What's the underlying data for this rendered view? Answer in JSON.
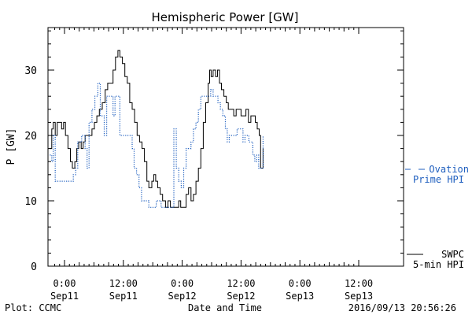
{
  "chart_data": {
    "type": "line",
    "title": "Hemispheric Power [GW]",
    "ylabel": "P [GW]",
    "xlabel": "Date and Time",
    "ylim": [
      0,
      36
    ],
    "xlim": [
      -2.5,
      60.5
    ],
    "yticks": [
      0,
      10,
      20,
      30
    ],
    "xticks": [
      {
        "x": 0,
        "time": "0:00",
        "date": "Sep11"
      },
      {
        "x": 12,
        "time": "12:00",
        "date": "Sep11"
      },
      {
        "x": 24,
        "time": "0:00",
        "date": "Sep12"
      },
      {
        "x": 36,
        "time": "12:00",
        "date": "Sep12"
      },
      {
        "x": 48,
        "time": "0:00",
        "date": "Sep13"
      },
      {
        "x": 60,
        "time": "12:00",
        "date": "Sep13"
      }
    ],
    "grid": false,
    "legend_position": "right",
    "series": [
      {
        "name": "SWPC 5-min HPI",
        "name_lines": [
          "SWPC",
          "5-min HPI"
        ],
        "color": "#000000",
        "style": "solid",
        "points": [
          [
            -3.0,
            18
          ],
          [
            -2.6,
            21
          ],
          [
            -2.3,
            22
          ],
          [
            -1.9,
            20
          ],
          [
            -1.5,
            22
          ],
          [
            -1.0,
            22
          ],
          [
            -0.6,
            21
          ],
          [
            -0.2,
            22
          ],
          [
            0.2,
            20
          ],
          [
            0.7,
            18
          ],
          [
            1.2,
            16
          ],
          [
            1.6,
            15
          ],
          [
            2.1,
            16
          ],
          [
            2.5,
            18
          ],
          [
            2.9,
            19
          ],
          [
            3.4,
            18
          ],
          [
            3.8,
            19
          ],
          [
            4.2,
            20
          ],
          [
            4.7,
            20
          ],
          [
            5.1,
            20
          ],
          [
            5.6,
            21
          ],
          [
            6.1,
            22
          ],
          [
            6.6,
            23
          ],
          [
            7.1,
            24
          ],
          [
            7.7,
            25
          ],
          [
            8.3,
            27
          ],
          [
            8.8,
            28
          ],
          [
            9.3,
            28
          ],
          [
            9.9,
            30
          ],
          [
            10.4,
            32
          ],
          [
            10.9,
            33
          ],
          [
            11.3,
            32
          ],
          [
            11.8,
            31
          ],
          [
            12.3,
            29
          ],
          [
            12.8,
            28
          ],
          [
            13.3,
            25
          ],
          [
            13.8,
            24
          ],
          [
            14.3,
            22
          ],
          [
            14.8,
            20
          ],
          [
            15.3,
            19
          ],
          [
            15.8,
            18
          ],
          [
            16.3,
            16
          ],
          [
            16.8,
            13
          ],
          [
            17.2,
            12
          ],
          [
            17.8,
            13
          ],
          [
            18.2,
            14
          ],
          [
            18.6,
            13
          ],
          [
            19.0,
            12
          ],
          [
            19.5,
            11
          ],
          [
            20.0,
            10
          ],
          [
            20.6,
            9
          ],
          [
            21.1,
            10
          ],
          [
            21.6,
            9
          ],
          [
            22.2,
            9
          ],
          [
            22.8,
            9
          ],
          [
            23.3,
            10
          ],
          [
            23.7,
            9
          ],
          [
            24.3,
            9
          ],
          [
            24.8,
            11
          ],
          [
            25.3,
            12
          ],
          [
            25.8,
            10
          ],
          [
            26.3,
            11
          ],
          [
            26.8,
            13
          ],
          [
            27.3,
            15
          ],
          [
            27.8,
            18
          ],
          [
            28.3,
            22
          ],
          [
            28.8,
            25
          ],
          [
            29.3,
            28
          ],
          [
            29.6,
            30
          ],
          [
            29.9,
            29
          ],
          [
            30.3,
            30
          ],
          [
            30.8,
            29
          ],
          [
            31.2,
            30
          ],
          [
            31.6,
            28
          ],
          [
            32.0,
            27
          ],
          [
            32.5,
            26
          ],
          [
            33.0,
            25
          ],
          [
            33.4,
            24
          ],
          [
            34.0,
            24
          ],
          [
            34.5,
            23
          ],
          [
            35.0,
            24
          ],
          [
            35.5,
            24
          ],
          [
            36.0,
            23
          ],
          [
            36.5,
            23
          ],
          [
            37.0,
            24
          ],
          [
            37.5,
            22
          ],
          [
            38.0,
            23
          ],
          [
            38.5,
            23
          ],
          [
            38.9,
            22
          ],
          [
            39.3,
            21
          ],
          [
            39.7,
            20
          ],
          [
            40.0,
            15
          ],
          [
            40.5,
            18
          ]
        ]
      },
      {
        "name": "Ovation Prime HPI",
        "name_lines": [
          "Ovation",
          "Prime HPI"
        ],
        "color": "#1f5fbf",
        "style": "dotted",
        "points": [
          [
            -3.0,
            17
          ],
          [
            -2.6,
            16
          ],
          [
            -2.3,
            20
          ],
          [
            -1.9,
            13
          ],
          [
            -1.4,
            13
          ],
          [
            -0.8,
            13
          ],
          [
            -0.2,
            13
          ],
          [
            0.5,
            13
          ],
          [
            1.2,
            13
          ],
          [
            1.8,
            14
          ],
          [
            2.3,
            15
          ],
          [
            2.7,
            19
          ],
          [
            3.1,
            19
          ],
          [
            3.5,
            20
          ],
          [
            3.9,
            20
          ],
          [
            4.2,
            18
          ],
          [
            4.6,
            15
          ],
          [
            5.0,
            22
          ],
          [
            5.6,
            24
          ],
          [
            6.2,
            26
          ],
          [
            6.8,
            28
          ],
          [
            7.3,
            23
          ],
          [
            7.8,
            23
          ],
          [
            8.1,
            20
          ],
          [
            8.6,
            26
          ],
          [
            9.0,
            26
          ],
          [
            9.4,
            26
          ],
          [
            9.9,
            23
          ],
          [
            10.3,
            26
          ],
          [
            10.8,
            26
          ],
          [
            11.3,
            20
          ],
          [
            11.8,
            20
          ],
          [
            12.3,
            20
          ],
          [
            12.8,
            20
          ],
          [
            13.3,
            20
          ],
          [
            13.8,
            18
          ],
          [
            14.2,
            15
          ],
          [
            14.7,
            14
          ],
          [
            15.2,
            12
          ],
          [
            15.7,
            10
          ],
          [
            16.2,
            10
          ],
          [
            16.7,
            10
          ],
          [
            17.2,
            9
          ],
          [
            17.7,
            9
          ],
          [
            18.2,
            9
          ],
          [
            18.7,
            10
          ],
          [
            19.2,
            10
          ],
          [
            19.7,
            9
          ],
          [
            20.2,
            9
          ],
          [
            20.7,
            9
          ],
          [
            21.3,
            9
          ],
          [
            21.8,
            9
          ],
          [
            22.3,
            21
          ],
          [
            22.8,
            15
          ],
          [
            23.3,
            13
          ],
          [
            23.8,
            12
          ],
          [
            24.3,
            15
          ],
          [
            24.8,
            18
          ],
          [
            25.3,
            18
          ],
          [
            25.8,
            19
          ],
          [
            26.3,
            21
          ],
          [
            26.8,
            22
          ],
          [
            27.3,
            24
          ],
          [
            27.8,
            26
          ],
          [
            28.3,
            26
          ],
          [
            28.8,
            26
          ],
          [
            29.3,
            26
          ],
          [
            29.8,
            27
          ],
          [
            30.3,
            26
          ],
          [
            30.8,
            26
          ],
          [
            31.3,
            25
          ],
          [
            31.8,
            24
          ],
          [
            32.3,
            23
          ],
          [
            32.8,
            21
          ],
          [
            33.2,
            19
          ],
          [
            33.6,
            20
          ],
          [
            34.0,
            20
          ],
          [
            34.4,
            20
          ],
          [
            34.8,
            20
          ],
          [
            35.2,
            21
          ],
          [
            35.6,
            21
          ],
          [
            36.0,
            21
          ],
          [
            36.4,
            19
          ],
          [
            36.8,
            20
          ],
          [
            37.2,
            20
          ],
          [
            37.6,
            19
          ],
          [
            38.0,
            19
          ],
          [
            38.4,
            17
          ],
          [
            38.8,
            16
          ],
          [
            39.2,
            17
          ],
          [
            39.6,
            15
          ],
          [
            40.0,
            15
          ],
          [
            40.5,
            20
          ]
        ]
      }
    ]
  },
  "footer": {
    "plot_credit": "Plot: CCMC",
    "timestamp": "2016/09/13 20:56:26"
  }
}
